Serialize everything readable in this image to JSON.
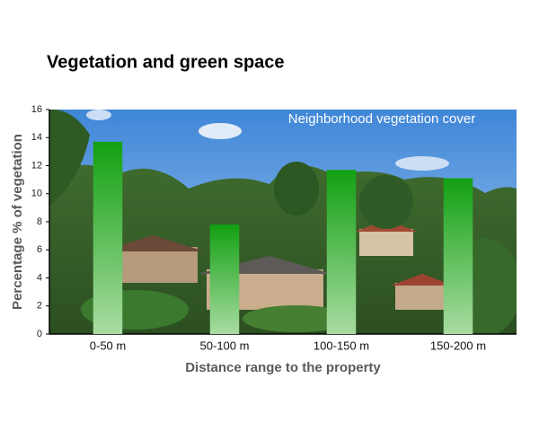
{
  "chart_data": {
    "type": "bar",
    "title": "Vegetation and green space",
    "annotation": "Neighborhood vegetation cover",
    "x_label": "Distance range to the property",
    "y_label": "Percentage % of vegetation",
    "categories": [
      "0-50 m",
      "50-100 m",
      "100-150 m",
      "150-200 m"
    ],
    "values": [
      13.7,
      7.8,
      11.7,
      11.1
    ],
    "color": "#12a012",
    "ylim": [
      0,
      16
    ],
    "yticks": [
      0,
      2,
      4,
      6,
      8,
      10,
      12,
      14,
      16
    ]
  }
}
